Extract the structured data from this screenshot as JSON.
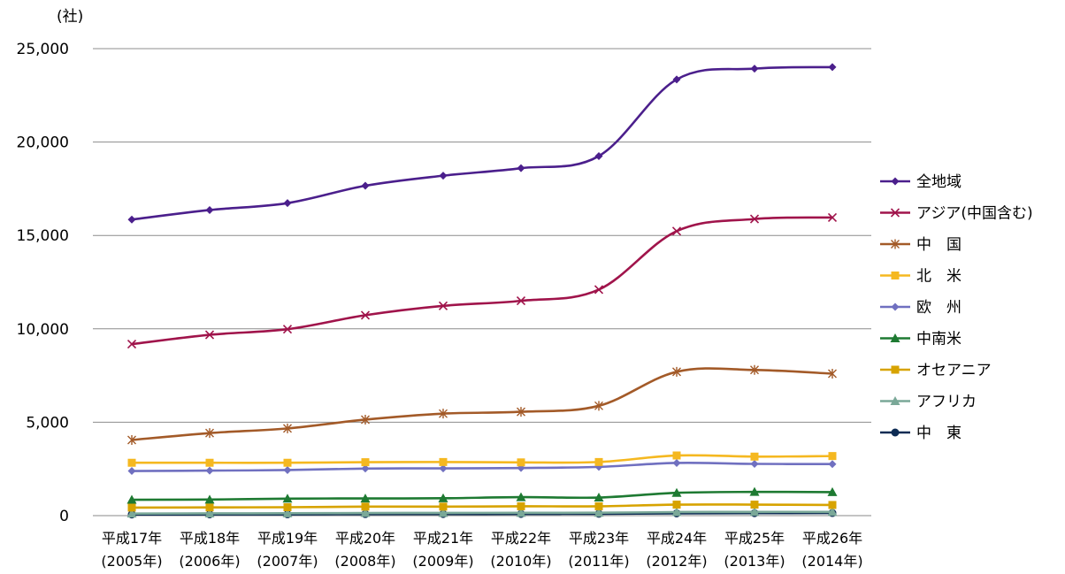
{
  "chart_data": {
    "type": "line",
    "unit_label": "(社)",
    "categories": [
      [
        "平成17年",
        "(2005年)"
      ],
      [
        "平成18年",
        "(2006年)"
      ],
      [
        "平成19年",
        "(2007年)"
      ],
      [
        "平成20年",
        "(2008年)"
      ],
      [
        "平成21年",
        "(2009年)"
      ],
      [
        "平成22年",
        "(2010年)"
      ],
      [
        "平成23年",
        "(2011年)"
      ],
      [
        "平成24年",
        "(2012年)"
      ],
      [
        "平成25年",
        "(2013年)"
      ],
      [
        "平成26年",
        "(2014年)"
      ]
    ],
    "ylim": [
      0,
      25000
    ],
    "yticks": [
      {
        "value": 0,
        "label": "0"
      },
      {
        "value": 5000,
        "label": "5,000"
      },
      {
        "value": 10000,
        "label": "10,000"
      },
      {
        "value": 15000,
        "label": "15,000"
      },
      {
        "value": 20000,
        "label": "20,000"
      },
      {
        "value": 25000,
        "label": "25,000"
      }
    ],
    "grid": true,
    "legend_position": "right",
    "series": [
      {
        "name": "全地域",
        "color": "#4B1F8C",
        "marker": "diamond",
        "values": [
          15850,
          16360,
          16730,
          17660,
          18200,
          18600,
          19250,
          23350,
          23930,
          24010
        ]
      },
      {
        "name": "アジア(中国含む)",
        "color": "#A0144B",
        "marker": "x",
        "values": [
          9180,
          9680,
          9980,
          10730,
          11230,
          11500,
          12100,
          15230,
          15880,
          15960
        ]
      },
      {
        "name": "中　国",
        "color": "#A35A28",
        "marker": "star",
        "values": [
          4050,
          4420,
          4670,
          5140,
          5460,
          5560,
          5880,
          7700,
          7800,
          7600
        ]
      },
      {
        "name": "北　米",
        "color": "#F5B820",
        "marker": "square",
        "values": [
          2830,
          2830,
          2830,
          2860,
          2870,
          2850,
          2870,
          3220,
          3160,
          3190
        ]
      },
      {
        "name": "欧　州",
        "color": "#7070C0",
        "marker": "diamond",
        "values": [
          2390,
          2410,
          2440,
          2520,
          2530,
          2550,
          2610,
          2820,
          2770,
          2760
        ]
      },
      {
        "name": "中南米",
        "color": "#1E7A32",
        "marker": "triangle",
        "values": [
          850,
          860,
          910,
          920,
          930,
          990,
          970,
          1220,
          1270,
          1260
        ]
      },
      {
        "name": "オセアニア",
        "color": "#D7A300",
        "marker": "square",
        "values": [
          430,
          440,
          450,
          480,
          480,
          500,
          500,
          590,
          590,
          570
        ]
      },
      {
        "name": "アフリカ",
        "color": "#7AA898",
        "marker": "triangle",
        "values": [
          110,
          120,
          125,
          140,
          145,
          150,
          155,
          190,
          200,
          200
        ]
      },
      {
        "name": "中　東",
        "color": "#0D2C54",
        "marker": "circle",
        "values": [
          60,
          65,
          70,
          80,
          85,
          90,
          100,
          120,
          130,
          140
        ]
      }
    ]
  }
}
